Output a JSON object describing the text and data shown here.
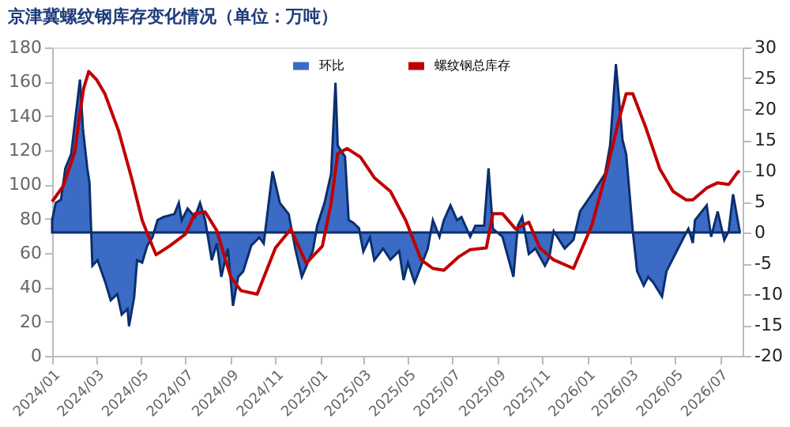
{
  "chart_data": {
    "type": "line",
    "title": "京津冀螺纹钢库存变化情况（单位：万吨）",
    "xlim": [
      "2024-01-01",
      "2026-08-01"
    ],
    "xticks": [
      {
        "value": "2024-01",
        "label": "2024/01"
      },
      {
        "value": "2024-03",
        "label": "2024/03"
      },
      {
        "value": "2024-05",
        "label": "2024/05"
      },
      {
        "value": "2024-07",
        "label": "2024/07"
      },
      {
        "value": "2024-09",
        "label": "2024/09"
      },
      {
        "value": "2024-11",
        "label": "2024/11"
      },
      {
        "value": "2025-01",
        "label": "2025/01"
      },
      {
        "value": "2025-03",
        "label": "2025/03"
      },
      {
        "value": "2025-05",
        "label": "2025/05"
      },
      {
        "value": "2025-07",
        "label": "2025/07"
      },
      {
        "value": "2025-09",
        "label": "2025/09"
      },
      {
        "value": "2025-11",
        "label": "2025/11"
      },
      {
        "value": "2026-01",
        "label": "2026/01"
      },
      {
        "value": "2026-03",
        "label": "2026/03"
      },
      {
        "value": "2026-05",
        "label": "2026/05"
      },
      {
        "value": "2026-07",
        "label": "2026/07"
      }
    ],
    "ylim": [
      0,
      180
    ],
    "yticks": [
      0,
      20,
      40,
      60,
      80,
      100,
      120,
      140,
      160,
      180
    ],
    "y2lim": [
      -20,
      30
    ],
    "y2ticks": [
      -20,
      -15,
      -10,
      -5,
      0,
      5,
      10,
      15,
      20,
      25,
      30
    ],
    "grid": false,
    "legend": "top",
    "marker": "none",
    "series": [
      {
        "name": "环比",
        "type": "area",
        "axis": "y2",
        "color": "#3b6bc4",
        "x": [
          "2024-01-01",
          "2024-01-06",
          "2024-01-13",
          "2024-01-19",
          "2024-01-27",
          "2024-02-08",
          "2024-02-12",
          "2024-02-18",
          "2024-02-21",
          "2024-02-25",
          "2024-03-03",
          "2024-03-14",
          "2024-03-21",
          "2024-03-30",
          "2024-04-05",
          "2024-04-13",
          "2024-04-15",
          "2024-04-22",
          "2024-04-26",
          "2024-05-03",
          "2024-05-10",
          "2024-05-17",
          "2024-05-24",
          "2024-06-01",
          "2024-06-16",
          "2024-06-22",
          "2024-06-26",
          "2024-07-04",
          "2024-07-14",
          "2024-07-21",
          "2024-07-28",
          "2024-08-06",
          "2024-08-13",
          "2024-08-19",
          "2024-08-28",
          "2024-09-04",
          "2024-09-11",
          "2024-09-18",
          "2024-09-29",
          "2024-10-10",
          "2024-10-16",
          "2024-10-28",
          "2024-11-07",
          "2024-11-19",
          "2024-11-28",
          "2024-12-07",
          "2024-12-22",
          "2024-12-28",
          "2025-01-07",
          "2025-01-16",
          "2025-01-22",
          "2025-01-25",
          "2025-02-04",
          "2025-02-09",
          "2025-02-15",
          "2025-02-23",
          "2025-03-01",
          "2025-03-10",
          "2025-03-16",
          "2025-03-28",
          "2025-04-07",
          "2025-04-19",
          "2025-04-25",
          "2025-05-01",
          "2025-05-10",
          "2025-05-16",
          "2025-05-28",
          "2025-06-04",
          "2025-06-13",
          "2025-06-19",
          "2025-06-28",
          "2025-07-07",
          "2025-07-13",
          "2025-07-25",
          "2025-08-01",
          "2025-08-13",
          "2025-08-19",
          "2025-08-25",
          "2025-09-07",
          "2025-09-22",
          "2025-09-28",
          "2025-10-04",
          "2025-10-13",
          "2025-10-22",
          "2025-11-04",
          "2025-11-10",
          "2025-11-16",
          "2025-12-01",
          "2025-12-13",
          "2025-12-22",
          "2026-01-10",
          "2026-01-25",
          "2026-02-01",
          "2026-02-09",
          "2026-02-18",
          "2026-02-23",
          "2026-03-04",
          "2026-03-10",
          "2026-03-19",
          "2026-03-25",
          "2026-04-01",
          "2026-04-13",
          "2026-04-19",
          "2026-05-01",
          "2026-05-13",
          "2026-05-19",
          "2026-05-25",
          "2026-05-28",
          "2026-06-13",
          "2026-06-19",
          "2026-06-28",
          "2026-07-07",
          "2026-07-13",
          "2026-07-19",
          "2026-07-28"
        ],
        "values": [
          2.0,
          4.8,
          5.3,
          10.4,
          12.7,
          24.8,
          16.9,
          10.4,
          8.1,
          -5.4,
          -4.5,
          -8.2,
          -11,
          -10,
          -13.3,
          -12.4,
          -15.2,
          -10.5,
          -4.5,
          -4.9,
          -2.1,
          -0.8,
          2.0,
          2.5,
          3.0,
          4.8,
          2.0,
          3.9,
          2.5,
          4.8,
          2.0,
          -4.5,
          -1.8,
          -7.2,
          -2.6,
          -11.9,
          -7.2,
          -6.3,
          -2.1,
          -0.8,
          -1.8,
          9.9,
          4.8,
          3.0,
          -2.6,
          -7.2,
          -3.0,
          1.1,
          4.8,
          9.5,
          24.3,
          14.1,
          12.3,
          2.0,
          1.6,
          0.7,
          -3.1,
          -0.8,
          -4.5,
          -2.6,
          -4.4,
          -3,
          -7.7,
          -4.9,
          -8.1,
          -6.3,
          -2.6,
          2,
          -0.7,
          2.0,
          4.4,
          2,
          2.5,
          -0.7,
          1.1,
          1.1,
          10.4,
          0.6,
          -0.7,
          -7.2,
          1.1,
          2.5,
          -3.5,
          -2.6,
          -5.4,
          -4,
          0.2,
          -2.6,
          -1.2,
          3.4,
          6.7,
          9.5,
          14.1,
          27.3,
          15,
          12.7,
          0.2,
          -6.3,
          -8.6,
          -7.2,
          -8.1,
          -10.4,
          -6.3,
          -3.5,
          -0.7,
          0.6,
          -1.7,
          2.0,
          4.4,
          -0.7,
          3.4,
          -1.2,
          0.2,
          6.2,
          0.2
        ]
      },
      {
        "name": "螺纹钢总库存",
        "color": "#c00000",
        "x": [
          "2024-01-01",
          "2024-01-16",
          "2024-02-01",
          "2024-02-07",
          "2024-02-13",
          "2024-02-20",
          "2024-03-02",
          "2024-03-13",
          "2024-04-01",
          "2024-04-19",
          "2024-05-03",
          "2024-05-17",
          "2024-05-22",
          "2024-06-09",
          "2024-07-01",
          "2024-07-14",
          "2024-07-28",
          "2024-08-13",
          "2024-09-01",
          "2024-09-15",
          "2024-10-07",
          "2024-11-01",
          "2024-11-22",
          "2024-12-13",
          "2025-01-04",
          "2025-01-16",
          "2025-01-25",
          "2025-02-07",
          "2025-02-25",
          "2025-03-16",
          "2025-04-07",
          "2025-04-28",
          "2025-05-19",
          "2025-06-04",
          "2025-06-19",
          "2025-07-10",
          "2025-07-25",
          "2025-08-16",
          "2025-08-25",
          "2025-09-07",
          "2025-09-25",
          "2025-10-13",
          "2025-10-28",
          "2025-11-16",
          "2025-12-13",
          "2026-01-07",
          "2026-01-28",
          "2026-02-12",
          "2026-02-23",
          "2026-03-04",
          "2026-03-22",
          "2026-04-10",
          "2026-04-28",
          "2026-05-16",
          "2026-05-25",
          "2026-06-13",
          "2026-06-28",
          "2026-07-13",
          "2026-07-25",
          "2026-07-28"
        ],
        "values": [
          90,
          99,
          119,
          139,
          156,
          166,
          161,
          153,
          131,
          103,
          79,
          64,
          59,
          64,
          71,
          83,
          84,
          73,
          46,
          38,
          36,
          63,
          74,
          54,
          64,
          89,
          118,
          121,
          116,
          104,
          96,
          79,
          56,
          51,
          50,
          58,
          62,
          63,
          83,
          83,
          74,
          78,
          63,
          56,
          51,
          76,
          109,
          136,
          153,
          153,
          133,
          109,
          96,
          91,
          91,
          98,
          101,
          100,
          107,
          108
        ]
      }
    ]
  }
}
